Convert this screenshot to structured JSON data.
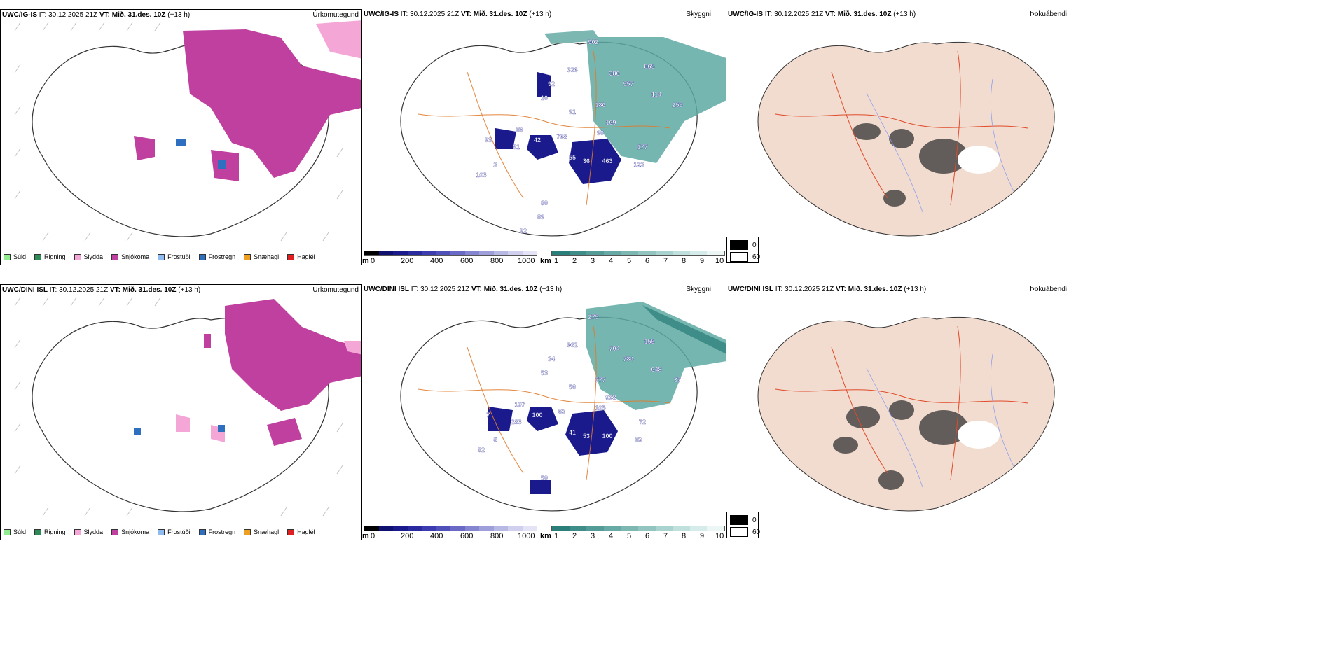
{
  "rows": [
    {
      "model": "UWC/IG-IS",
      "it": "IT: 30.12.2025 21Z",
      "vt": "VT: Mið. 31.des. 10Z",
      "lead": "(+13 h)",
      "ceiling_values": [
        "902",
        "336",
        "386",
        "865",
        "557",
        "114",
        "255",
        "186",
        "169",
        "90",
        "92",
        "91",
        "10",
        "86",
        "61",
        "42",
        "768",
        "55",
        "36",
        "463",
        "177",
        "122",
        "93",
        "2",
        "103",
        "80",
        "89",
        "92"
      ]
    },
    {
      "model": "UWC/DINI ISL",
      "it": "IT: 30.12.2025 21Z",
      "vt": "VT: Mið. 31.des. 10Z",
      "lead": "(+13 h)",
      "ceiling_values": [
        "275",
        "962",
        "704",
        "155",
        "784",
        "648",
        "37",
        "777",
        "938",
        "105",
        "34",
        "56",
        "53",
        "107",
        "283",
        "100",
        "63",
        "41",
        "53",
        "100",
        "72",
        "82",
        "7",
        "5",
        "82",
        "50"
      ]
    }
  ],
  "panel_labels": {
    "precip": "Úrkomutegund",
    "visibility": "Skyggni",
    "fog": "Þokuábendi"
  },
  "precip_legend": [
    {
      "label": "Súld",
      "color": "#90ee90"
    },
    {
      "label": "Rigning",
      "color": "#2e8b57"
    },
    {
      "label": "Slydda",
      "color": "#f4a6d7"
    },
    {
      "label": "Snjókoma",
      "color": "#c040a0"
    },
    {
      "label": "Frostúði",
      "color": "#8fbcf0"
    },
    {
      "label": "Frostregn",
      "color": "#2f6fbf"
    },
    {
      "label": "Snæhagl",
      "color": "#f0a020"
    },
    {
      "label": "Haglél",
      "color": "#e02020"
    }
  ],
  "ceiling_bar": {
    "unit": "m",
    "ticks": [
      "0",
      "200",
      "400",
      "600",
      "800",
      "1000"
    ],
    "colors": [
      "#000000",
      "#101070",
      "#1a1a8c",
      "#2a2aa0",
      "#3c3cb0",
      "#5050bb",
      "#6a6ac6",
      "#8484d0",
      "#9e9eda",
      "#b8b8e4",
      "#d0d0ee",
      "#e4e4f6"
    ]
  },
  "vis_bar": {
    "unit": "km",
    "ticks": [
      "1",
      "2",
      "3",
      "4",
      "5",
      "6",
      "7",
      "8",
      "9",
      "10"
    ],
    "colors": [
      "#2a7f7a",
      "#3e8d88",
      "#529b96",
      "#67a9a4",
      "#7cb7b2",
      "#92c5c0",
      "#a8d3ce",
      "#bfe0dc",
      "#d6ecea",
      "#ecf6f5"
    ]
  },
  "fog_legend": [
    {
      "label": "0",
      "color": "#000000"
    },
    {
      "label": "60",
      "color": "#ffffff"
    }
  ]
}
